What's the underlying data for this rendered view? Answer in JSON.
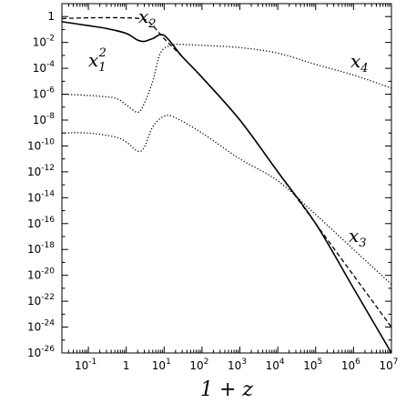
{
  "chart_data": {
    "type": "line",
    "xlabel": "1 + z",
    "xscale": "log",
    "yscale": "log",
    "xlim": [
      0.02,
      10000000
    ],
    "ylim": [
      1e-26,
      10
    ],
    "x_ticks": [
      {
        "base": "10",
        "exp": "-1"
      },
      {
        "base": "1",
        "exp": ""
      },
      {
        "base": "10",
        "exp": "1"
      },
      {
        "base": "10",
        "exp": "2"
      },
      {
        "base": "10",
        "exp": "3"
      },
      {
        "base": "10",
        "exp": "4"
      },
      {
        "base": "10",
        "exp": "5"
      },
      {
        "base": "10",
        "exp": "6"
      },
      {
        "base": "10",
        "exp": "7"
      }
    ],
    "y_ticks": [
      {
        "base": "1",
        "exp": ""
      },
      {
        "base": "10",
        "exp": "-2"
      },
      {
        "base": "10",
        "exp": "-4"
      },
      {
        "base": "10",
        "exp": "-6"
      },
      {
        "base": "10",
        "exp": "-8"
      },
      {
        "base": "10",
        "exp": "-10"
      },
      {
        "base": "10",
        "exp": "-12"
      },
      {
        "base": "10",
        "exp": "-14"
      },
      {
        "base": "10",
        "exp": "-16"
      },
      {
        "base": "10",
        "exp": "-18"
      },
      {
        "base": "10",
        "exp": "-20"
      },
      {
        "base": "10",
        "exp": "-22"
      },
      {
        "base": "10",
        "exp": "-24"
      },
      {
        "base": "10",
        "exp": "-26"
      }
    ],
    "series": [
      {
        "name": "x1^2",
        "label": {
          "base": "x",
          "sub": "1",
          "sup": "2"
        },
        "style": "solid",
        "x": [
          0.02,
          0.1,
          0.3,
          1,
          2,
          3,
          5,
          10,
          30,
          100,
          1000,
          10000,
          100000,
          1000000,
          10000000
        ],
        "y": [
          0.4,
          0.2,
          0.12,
          0.05,
          0.015,
          0.012,
          0.02,
          0.035,
          0.0008,
          2e-05,
          1e-08,
          1e-12,
          1e-16,
          1e-21,
          1e-26
        ]
      },
      {
        "name": "x2",
        "label": {
          "base": "x",
          "sub": "2",
          "sup": ""
        },
        "style": "dashed",
        "x": [
          0.02,
          0.1,
          1,
          3,
          5,
          10,
          30,
          100,
          1000,
          10000,
          100000,
          1000000,
          10000000
        ],
        "y": [
          0.7,
          0.8,
          0.8,
          0.6,
          0.2,
          0.02,
          0.0008,
          2e-05,
          1e-08,
          1e-12,
          1e-16,
          1e-20,
          1e-24
        ]
      },
      {
        "name": "x3",
        "label": {
          "base": "x",
          "sub": "3",
          "sup": ""
        },
        "style": "dotted",
        "x": [
          0.02,
          0.1,
          0.5,
          1,
          2,
          3,
          5,
          10,
          20,
          100,
          1000,
          10000,
          100000,
          1000000,
          10000000
        ],
        "y": [
          1e-09,
          1e-09,
          5e-10,
          2e-10,
          4e-11,
          8e-11,
          3e-09,
          2e-08,
          1.5e-08,
          1e-09,
          1e-11,
          2e-13,
          5e-16,
          1e-18,
          2e-21
        ]
      },
      {
        "name": "x4",
        "label": {
          "base": "x",
          "sub": "4",
          "sup": ""
        },
        "style": "dotted",
        "x": [
          0.02,
          0.1,
          0.5,
          1,
          2,
          3,
          5,
          8,
          15,
          30,
          100,
          1000,
          10000,
          100000,
          1000000,
          10000000
        ],
        "y": [
          1e-06,
          8e-07,
          5e-07,
          1.5e-07,
          4e-08,
          2e-07,
          1e-05,
          0.0015,
          0.006,
          0.007,
          0.006,
          0.004,
          0.0015,
          0.0002,
          3e-05,
          3e-06
        ]
      }
    ]
  }
}
